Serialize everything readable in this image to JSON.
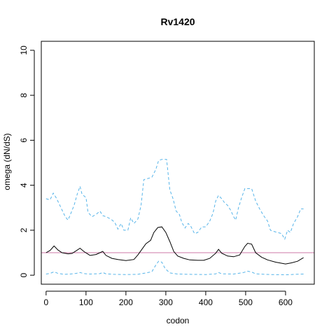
{
  "chart_data": {
    "type": "line",
    "title": "Rv1420",
    "xlabel": "codon",
    "ylabel": "omega (dN/dS)",
    "xlim": [
      -12,
      672
    ],
    "ylim": [
      -0.4,
      10.4
    ],
    "xticks": [
      0,
      100,
      200,
      300,
      400,
      500,
      600
    ],
    "yticks": [
      0,
      2,
      4,
      6,
      8,
      10
    ],
    "reference_line": {
      "y": 1,
      "color": "#CC79A7"
    },
    "series": [
      {
        "line_style": "solid",
        "color": "#000000",
        "points": [
          [
            0,
            1.0
          ],
          [
            10,
            1.1
          ],
          [
            20,
            1.3
          ],
          [
            30,
            1.12
          ],
          [
            40,
            1.0
          ],
          [
            55,
            0.95
          ],
          [
            65,
            0.97
          ],
          [
            75,
            1.08
          ],
          [
            85,
            1.2
          ],
          [
            95,
            1.05
          ],
          [
            110,
            0.88
          ],
          [
            125,
            0.92
          ],
          [
            135,
            1.0
          ],
          [
            142,
            1.06
          ],
          [
            150,
            0.88
          ],
          [
            165,
            0.75
          ],
          [
            180,
            0.7
          ],
          [
            200,
            0.65
          ],
          [
            220,
            0.7
          ],
          [
            230,
            0.9
          ],
          [
            240,
            1.15
          ],
          [
            250,
            1.4
          ],
          [
            262,
            1.55
          ],
          [
            270,
            1.9
          ],
          [
            280,
            2.12
          ],
          [
            290,
            2.15
          ],
          [
            300,
            1.9
          ],
          [
            310,
            1.5
          ],
          [
            320,
            1.05
          ],
          [
            330,
            0.85
          ],
          [
            345,
            0.75
          ],
          [
            360,
            0.68
          ],
          [
            380,
            0.66
          ],
          [
            395,
            0.66
          ],
          [
            410,
            0.75
          ],
          [
            425,
            0.98
          ],
          [
            432,
            1.15
          ],
          [
            440,
            0.98
          ],
          [
            455,
            0.85
          ],
          [
            470,
            0.82
          ],
          [
            485,
            0.9
          ],
          [
            498,
            1.28
          ],
          [
            505,
            1.42
          ],
          [
            515,
            1.38
          ],
          [
            525,
            1.0
          ],
          [
            540,
            0.8
          ],
          [
            555,
            0.68
          ],
          [
            575,
            0.58
          ],
          [
            600,
            0.5
          ],
          [
            615,
            0.55
          ],
          [
            630,
            0.62
          ],
          [
            645,
            0.78
          ]
        ]
      },
      {
        "line_style": "dashed",
        "color": "#56B4E9",
        "points": [
          [
            0,
            3.4
          ],
          [
            10,
            3.35
          ],
          [
            18,
            3.65
          ],
          [
            25,
            3.45
          ],
          [
            32,
            3.2
          ],
          [
            40,
            2.9
          ],
          [
            48,
            2.6
          ],
          [
            55,
            2.45
          ],
          [
            62,
            2.75
          ],
          [
            70,
            3.1
          ],
          [
            78,
            3.6
          ],
          [
            85,
            3.95
          ],
          [
            90,
            3.6
          ],
          [
            100,
            3.45
          ],
          [
            105,
            2.8
          ],
          [
            115,
            2.6
          ],
          [
            125,
            2.7
          ],
          [
            135,
            2.85
          ],
          [
            142,
            2.65
          ],
          [
            150,
            2.6
          ],
          [
            162,
            2.5
          ],
          [
            172,
            2.35
          ],
          [
            180,
            2.05
          ],
          [
            188,
            2.3
          ],
          [
            195,
            2.0
          ],
          [
            205,
            2.0
          ],
          [
            212,
            2.55
          ],
          [
            220,
            2.3
          ],
          [
            230,
            2.5
          ],
          [
            238,
            3.1
          ],
          [
            245,
            4.25
          ],
          [
            255,
            4.3
          ],
          [
            265,
            4.35
          ],
          [
            275,
            4.7
          ],
          [
            282,
            5.1
          ],
          [
            290,
            5.15
          ],
          [
            302,
            5.15
          ],
          [
            310,
            3.8
          ],
          [
            318,
            3.4
          ],
          [
            326,
            2.85
          ],
          [
            334,
            2.7
          ],
          [
            340,
            2.35
          ],
          [
            348,
            2.1
          ],
          [
            356,
            2.3
          ],
          [
            362,
            2.2
          ],
          [
            372,
            1.85
          ],
          [
            380,
            1.9
          ],
          [
            390,
            2.15
          ],
          [
            400,
            2.15
          ],
          [
            410,
            2.4
          ],
          [
            418,
            2.75
          ],
          [
            425,
            3.3
          ],
          [
            432,
            3.55
          ],
          [
            440,
            3.4
          ],
          [
            448,
            3.2
          ],
          [
            455,
            3.1
          ],
          [
            462,
            2.9
          ],
          [
            470,
            2.6
          ],
          [
            475,
            2.45
          ],
          [
            482,
            3.0
          ],
          [
            490,
            3.45
          ],
          [
            498,
            3.85
          ],
          [
            505,
            3.85
          ],
          [
            515,
            3.85
          ],
          [
            525,
            3.3
          ],
          [
            535,
            2.95
          ],
          [
            545,
            2.65
          ],
          [
            555,
            2.4
          ],
          [
            562,
            2.0
          ],
          [
            570,
            1.95
          ],
          [
            580,
            1.9
          ],
          [
            590,
            1.85
          ],
          [
            598,
            1.6
          ],
          [
            605,
            2.0
          ],
          [
            612,
            1.9
          ],
          [
            620,
            2.3
          ],
          [
            630,
            2.6
          ],
          [
            638,
            2.95
          ],
          [
            645,
            2.95
          ]
        ]
      },
      {
        "line_style": "dashed",
        "color": "#56B4E9",
        "points": [
          [
            0,
            0.05
          ],
          [
            10,
            0.08
          ],
          [
            20,
            0.15
          ],
          [
            30,
            0.08
          ],
          [
            45,
            0.04
          ],
          [
            60,
            0.05
          ],
          [
            75,
            0.08
          ],
          [
            85,
            0.12
          ],
          [
            95,
            0.07
          ],
          [
            110,
            0.05
          ],
          [
            135,
            0.07
          ],
          [
            142,
            0.12
          ],
          [
            150,
            0.06
          ],
          [
            170,
            0.04
          ],
          [
            200,
            0.03
          ],
          [
            230,
            0.04
          ],
          [
            250,
            0.1
          ],
          [
            265,
            0.15
          ],
          [
            275,
            0.45
          ],
          [
            282,
            0.62
          ],
          [
            290,
            0.58
          ],
          [
            298,
            0.3
          ],
          [
            310,
            0.1
          ],
          [
            330,
            0.05
          ],
          [
            360,
            0.04
          ],
          [
            400,
            0.03
          ],
          [
            425,
            0.06
          ],
          [
            432,
            0.12
          ],
          [
            440,
            0.06
          ],
          [
            470,
            0.05
          ],
          [
            495,
            0.12
          ],
          [
            505,
            0.18
          ],
          [
            515,
            0.14
          ],
          [
            525,
            0.06
          ],
          [
            560,
            0.03
          ],
          [
            600,
            0.02
          ],
          [
            645,
            0.05
          ]
        ]
      }
    ]
  }
}
